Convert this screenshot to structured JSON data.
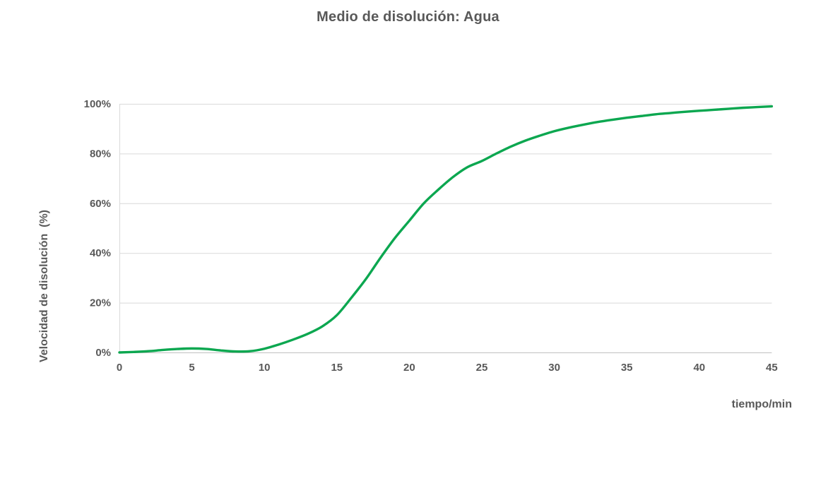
{
  "colors": {
    "background": "#ffffff",
    "text": "#595959",
    "gridline": "#d9d9d9",
    "axis_line": "#c0c0c0",
    "series_green": "#0ca750"
  },
  "chart_data": {
    "type": "line",
    "title": "Medio de disolución: Agua",
    "xlabel": "tiempo/min",
    "ylabel": "Velocidad de disolución  (%)",
    "xlim": [
      0,
      45
    ],
    "ylim": [
      0,
      100
    ],
    "grid": "horizontal-only",
    "legend": "none",
    "x_ticks": [
      0,
      5,
      10,
      15,
      20,
      25,
      30,
      35,
      40,
      45
    ],
    "y_ticks": [
      0,
      20,
      40,
      60,
      80,
      100
    ],
    "y_tick_labels": [
      "0%",
      "20%",
      "40%",
      "60%",
      "80%",
      "100%"
    ],
    "series": [
      {
        "name": "Agua",
        "color": "#0ca750",
        "x": [
          0,
          1,
          2,
          3,
          4,
          5,
          6,
          7,
          8,
          9,
          10,
          11,
          12,
          13,
          14,
          15,
          16,
          17,
          18,
          19,
          20,
          21,
          22,
          23,
          24,
          25,
          26,
          27,
          28,
          29,
          30,
          31,
          32,
          33,
          34,
          35,
          36,
          37,
          38,
          39,
          40,
          41,
          42,
          43,
          44,
          45
        ],
        "y": [
          0,
          0.2,
          0.5,
          1.0,
          1.4,
          1.6,
          1.4,
          0.8,
          0.4,
          0.5,
          1.5,
          3.2,
          5.2,
          7.5,
          10.5,
          15,
          22,
          29.5,
          38,
          46,
          53,
          60,
          65.5,
          70.5,
          74.5,
          77,
          80,
          82.8,
          85.2,
          87.2,
          89,
          90.4,
          91.6,
          92.7,
          93.6,
          94.4,
          95.1,
          95.8,
          96.3,
          96.8,
          97.2,
          97.6,
          98,
          98.4,
          98.7,
          99
        ]
      }
    ]
  }
}
